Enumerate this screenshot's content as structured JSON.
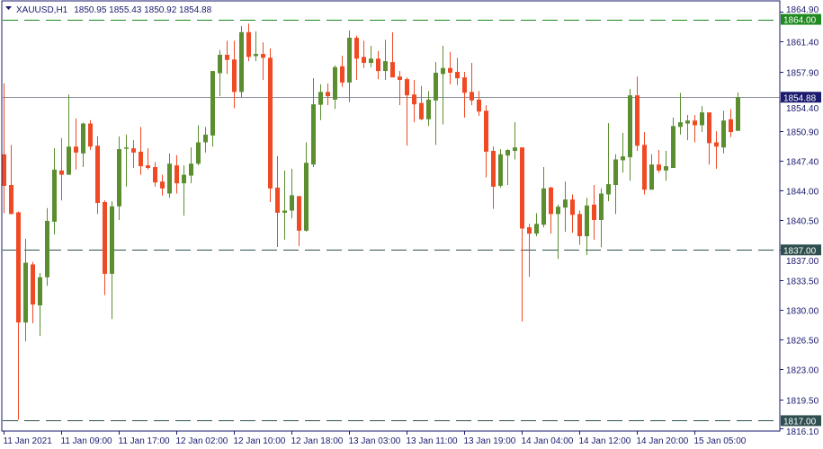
{
  "header": {
    "symbol": "XAUUSD,H1",
    "ohlc": "1850.95 1855.43 1850.92 1854.88"
  },
  "colors": {
    "bull": "#5b8e2f",
    "bear": "#f04a25",
    "axis": "#1a1a6e",
    "text": "#1a1a6e",
    "level_upper": "#1a8a1a",
    "level_other": "#2f4f4f",
    "bid_line": "#8a9099"
  },
  "chart_data": {
    "type": "candlestick",
    "title": "XAUUSD,H1",
    "ylim": [
      1816.1,
      1864.9
    ],
    "grid": false,
    "y_ticks": [
      "1864.90",
      "1861.40",
      "1857.90",
      "1854.40",
      "1850.90",
      "1847.40",
      "1844.00",
      "1840.50",
      "1837.00",
      "1833.50",
      "1830.00",
      "1826.50",
      "1823.00",
      "1819.50",
      "1816.10"
    ],
    "x_ticks": [
      {
        "bar": 0,
        "label": "11 Jan 2021"
      },
      {
        "bar": 8,
        "label": "11 Jan 09:00"
      },
      {
        "bar": 16,
        "label": "11 Jan 17:00"
      },
      {
        "bar": 24,
        "label": "12 Jan 02:00"
      },
      {
        "bar": 32,
        "label": "12 Jan 10:00"
      },
      {
        "bar": 40,
        "label": "12 Jan 18:00"
      },
      {
        "bar": 48,
        "label": "13 Jan 03:00"
      },
      {
        "bar": 56,
        "label": "13 Jan 11:00"
      },
      {
        "bar": 64,
        "label": "13 Jan 19:00"
      },
      {
        "bar": 72,
        "label": "14 Jan 04:00"
      },
      {
        "bar": 80,
        "label": "14 Jan 12:00"
      },
      {
        "bar": 88,
        "label": "14 Jan 20:00"
      },
      {
        "bar": 96,
        "label": "15 Jan 05:00"
      }
    ],
    "levels": [
      {
        "price": 1864.0,
        "label": "1864.00",
        "style": "dashed",
        "color": "#1a8a1a"
      },
      {
        "price": 1837.0,
        "label": "1837.00",
        "style": "dashed",
        "color": "#2f4f4f"
      },
      {
        "price": 1817.0,
        "label": "1817.00",
        "style": "dashed",
        "color": "#2f4f4f"
      }
    ],
    "bid": {
      "price": 1854.88,
      "label": "1854.88"
    },
    "candles_ohlc": [
      [
        1848.2,
        1856.5,
        1841.3,
        1844.5
      ],
      [
        1844.6,
        1849.3,
        1841.2,
        1841.2
      ],
      [
        1841.4,
        1841.5,
        1817.1,
        1828.5
      ],
      [
        1828.5,
        1838.3,
        1826.3,
        1835.5
      ],
      [
        1835.3,
        1835.6,
        1828.4,
        1830.6
      ],
      [
        1830.5,
        1834.3,
        1826.9,
        1833.8
      ],
      [
        1833.8,
        1841.9,
        1832.8,
        1840.4
      ],
      [
        1840.3,
        1848.9,
        1838.8,
        1846.4
      ],
      [
        1846.3,
        1850.1,
        1842.8,
        1845.8
      ],
      [
        1845.8,
        1855.2,
        1845.8,
        1849.1
      ],
      [
        1849.1,
        1852.4,
        1846.4,
        1848.4
      ],
      [
        1848.3,
        1851.9,
        1846.7,
        1851.8
      ],
      [
        1851.8,
        1852.2,
        1848.7,
        1849.1
      ],
      [
        1849.2,
        1850.3,
        1841.2,
        1842.5
      ],
      [
        1842.6,
        1842.8,
        1831.7,
        1834.2
      ],
      [
        1834.2,
        1842.7,
        1828.9,
        1842.1
      ],
      [
        1842.1,
        1850.3,
        1840.5,
        1848.8
      ],
      [
        1848.9,
        1850.5,
        1844.4,
        1849.0
      ],
      [
        1848.9,
        1849.85,
        1846.6,
        1848.4
      ],
      [
        1848.5,
        1851.4,
        1845.8,
        1846.8
      ],
      [
        1846.9,
        1848.9,
        1846.4,
        1846.6
      ],
      [
        1846.7,
        1847.3,
        1844.4,
        1844.9
      ],
      [
        1845.0,
        1845.8,
        1843.35,
        1844.2
      ],
      [
        1843.6,
        1848.3,
        1843.1,
        1847.1
      ],
      [
        1846.9,
        1848.1,
        1843.6,
        1844.8
      ],
      [
        1844.8,
        1846.9,
        1841.0,
        1845.8
      ],
      [
        1845.7,
        1849.0,
        1844.8,
        1847.1
      ],
      [
        1847.1,
        1851.6,
        1846.9,
        1849.6
      ],
      [
        1849.6,
        1851.4,
        1848.4,
        1850.5
      ],
      [
        1850.4,
        1857.95,
        1849.1,
        1857.95
      ],
      [
        1857.7,
        1860.4,
        1855.0,
        1859.85
      ],
      [
        1859.85,
        1861.5,
        1857.6,
        1859.25
      ],
      [
        1859.3,
        1861.5,
        1853.6,
        1855.5
      ],
      [
        1855.5,
        1863.2,
        1854.9,
        1862.5
      ],
      [
        1862.5,
        1863.5,
        1859.1,
        1859.6
      ],
      [
        1859.7,
        1862.6,
        1859.1,
        1859.95
      ],
      [
        1859.95,
        1861.3,
        1856.9,
        1859.5
      ],
      [
        1859.5,
        1860.6,
        1842.6,
        1844.2
      ],
      [
        1844.3,
        1848.0,
        1837.35,
        1841.35
      ],
      [
        1841.35,
        1846.3,
        1838.2,
        1841.6
      ],
      [
        1841.6,
        1846.5,
        1840.7,
        1843.4
      ],
      [
        1843.3,
        1843.3,
        1837.45,
        1839.25
      ],
      [
        1839.25,
        1849.6,
        1839.15,
        1847.2
      ],
      [
        1847.0,
        1857.1,
        1846.7,
        1854.05
      ],
      [
        1854.0,
        1856.4,
        1852.2,
        1855.5
      ],
      [
        1855.5,
        1856.5,
        1853.95,
        1855.0
      ],
      [
        1854.6,
        1858.6,
        1853.5,
        1858.4
      ],
      [
        1858.5,
        1859.75,
        1856.1,
        1856.6
      ],
      [
        1856.6,
        1862.7,
        1854.3,
        1861.85
      ],
      [
        1861.85,
        1862.1,
        1856.9,
        1859.4
      ],
      [
        1859.6,
        1861.5,
        1858.3,
        1858.9
      ],
      [
        1858.9,
        1860.9,
        1858.4,
        1859.4
      ],
      [
        1859.4,
        1860.3,
        1857.0,
        1857.95
      ],
      [
        1857.95,
        1861.6,
        1856.9,
        1859.1
      ],
      [
        1859.0,
        1862.5,
        1857.2,
        1857.2
      ],
      [
        1857.3,
        1857.95,
        1853.95,
        1856.9
      ],
      [
        1857.0,
        1857.2,
        1849.2,
        1855.1
      ],
      [
        1855.2,
        1856.9,
        1851.95,
        1854.05
      ],
      [
        1854.2,
        1856.2,
        1852.2,
        1852.3
      ],
      [
        1852.3,
        1855.6,
        1851.5,
        1854.6
      ],
      [
        1854.5,
        1859.0,
        1849.3,
        1857.75
      ],
      [
        1857.6,
        1860.9,
        1851.7,
        1858.3
      ],
      [
        1858.3,
        1860.2,
        1856.4,
        1857.75
      ],
      [
        1857.85,
        1859.5,
        1856.3,
        1857.1
      ],
      [
        1857.2,
        1857.85,
        1852.5,
        1855.4
      ],
      [
        1855.5,
        1858.9,
        1853.95,
        1854.5
      ],
      [
        1854.6,
        1855.6,
        1852.7,
        1853.2
      ],
      [
        1853.3,
        1853.95,
        1845.5,
        1848.5
      ],
      [
        1848.6,
        1849.1,
        1841.8,
        1844.4
      ],
      [
        1844.5,
        1848.8,
        1844.3,
        1848.2
      ],
      [
        1848.05,
        1848.8,
        1844.6,
        1848.7
      ],
      [
        1848.6,
        1851.95,
        1847.6,
        1849.0
      ],
      [
        1849.0,
        1849.0,
        1828.6,
        1839.5
      ],
      [
        1839.65,
        1840.05,
        1833.85,
        1838.9
      ],
      [
        1838.9,
        1841.3,
        1838.6,
        1840.05
      ],
      [
        1839.95,
        1846.7,
        1839.65,
        1844.2
      ],
      [
        1844.3,
        1844.4,
        1838.9,
        1841.2
      ],
      [
        1841.2,
        1842.3,
        1835.95,
        1842.05
      ],
      [
        1841.95,
        1845.0,
        1839.1,
        1842.9
      ],
      [
        1842.9,
        1843.5,
        1839.0,
        1841.1
      ],
      [
        1841.2,
        1841.6,
        1837.6,
        1838.6
      ],
      [
        1838.6,
        1843.1,
        1836.4,
        1842.2
      ],
      [
        1842.3,
        1844.6,
        1838.2,
        1840.5
      ],
      [
        1840.5,
        1844.2,
        1837.3,
        1843.6
      ],
      [
        1843.5,
        1851.85,
        1842.7,
        1844.7
      ],
      [
        1844.6,
        1848.2,
        1841.2,
        1847.6
      ],
      [
        1847.5,
        1850.7,
        1846.05,
        1847.95
      ],
      [
        1847.85,
        1855.85,
        1845.1,
        1855.1
      ],
      [
        1855.1,
        1857.3,
        1848.6,
        1849.2
      ],
      [
        1849.3,
        1850.8,
        1843.5,
        1844.05
      ],
      [
        1844.05,
        1848.2,
        1844.05,
        1847.0
      ],
      [
        1847.0,
        1848.7,
        1846.05,
        1846.3
      ],
      [
        1846.3,
        1848.6,
        1845.1,
        1846.8
      ],
      [
        1846.6,
        1852.5,
        1846.6,
        1851.5
      ],
      [
        1851.4,
        1855.4,
        1850.5,
        1851.95
      ],
      [
        1851.8,
        1852.8,
        1849.85,
        1852.15
      ],
      [
        1852.15,
        1852.8,
        1849.6,
        1851.6
      ],
      [
        1851.6,
        1853.85,
        1850.8,
        1853.1
      ],
      [
        1853.1,
        1853.1,
        1847.0,
        1849.5
      ],
      [
        1849.6,
        1850.9,
        1846.5,
        1849.1
      ],
      [
        1849.0,
        1853.3,
        1848.3,
        1852.15
      ],
      [
        1852.3,
        1853.5,
        1850.2,
        1850.8
      ],
      [
        1850.95,
        1855.43,
        1850.92,
        1854.88
      ]
    ]
  }
}
